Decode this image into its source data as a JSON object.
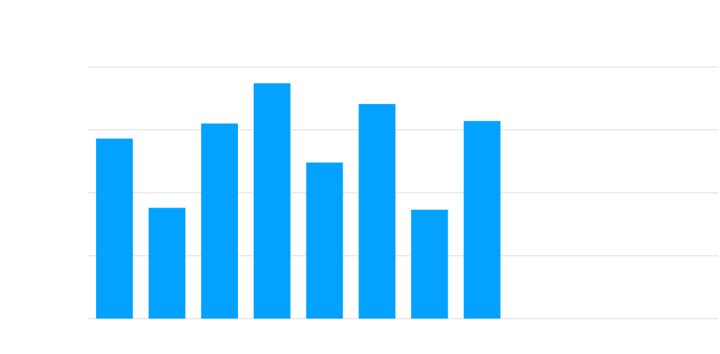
{
  "chart_data": {
    "type": "bar",
    "categories": [
      null,
      null,
      null,
      null,
      null,
      null,
      null,
      null,
      null,
      null,
      null,
      null
    ],
    "values": [
      2.86,
      1.76,
      3.1,
      3.74,
      2.48,
      3.41,
      1.73,
      3.14,
      null,
      null,
      null,
      null
    ],
    "color": "#03a2ff",
    "ylim": [
      0,
      4
    ],
    "yticks": [
      0,
      1,
      2,
      3,
      4
    ],
    "grid": true
  }
}
